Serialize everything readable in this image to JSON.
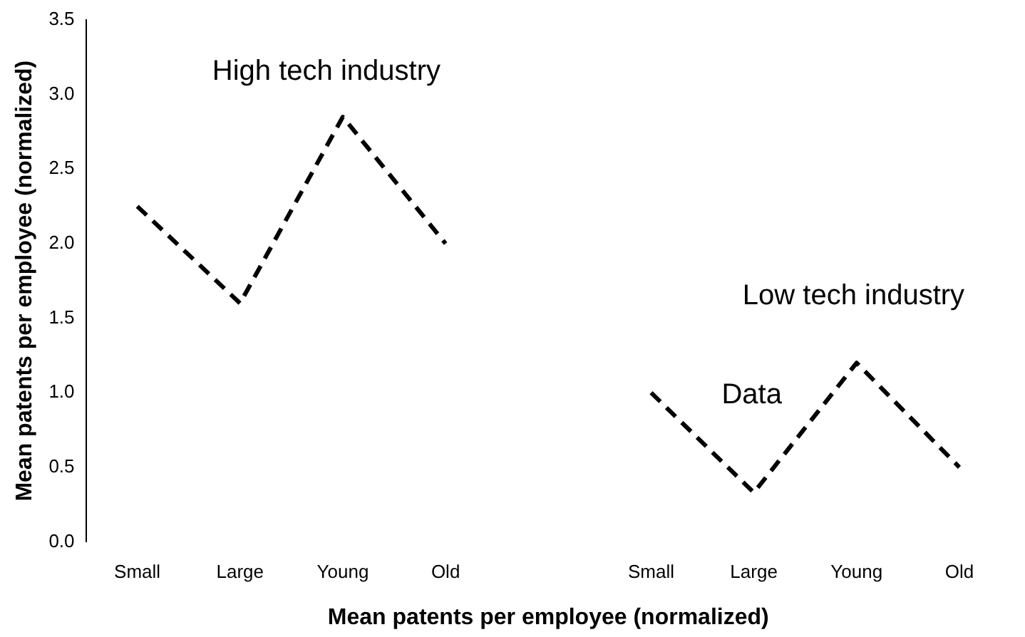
{
  "chart_data": {
    "type": "line",
    "xlabel": "Mean patents per employee (normalized)",
    "ylabel": "Mean patents per employee (normalized)",
    "categories": [
      "Small",
      "Large",
      "Young",
      "Old",
      null,
      "Small",
      "Large",
      "Young",
      "Old"
    ],
    "series": [
      {
        "color": "#000000",
        "values": [
          2.25,
          1.6,
          2.85,
          2.0,
          null,
          null,
          null,
          null,
          null
        ]
      },
      {
        "color": "#000000",
        "values": [
          null,
          null,
          null,
          null,
          null,
          1.0,
          0.33,
          1.2,
          0.5
        ]
      }
    ],
    "ylim": [
      0,
      3.5
    ],
    "yticks": [
      {
        "value": 0,
        "label": "0.0"
      },
      {
        "value": 0.5,
        "label": "0.5"
      },
      {
        "value": 1,
        "label": "1.0"
      },
      {
        "value": 1.5,
        "label": "1.5"
      },
      {
        "value": 2,
        "label": "2.0"
      },
      {
        "value": 2.5,
        "label": "2.5"
      },
      {
        "value": 3,
        "label": "3.0"
      },
      {
        "value": 3.5,
        "label": "3.5"
      }
    ],
    "annotations": [
      "High tech industry",
      "Low tech industry",
      "Data"
    ],
    "grid": false,
    "legend": false,
    "marker": "none",
    "line_style": "dashed"
  }
}
